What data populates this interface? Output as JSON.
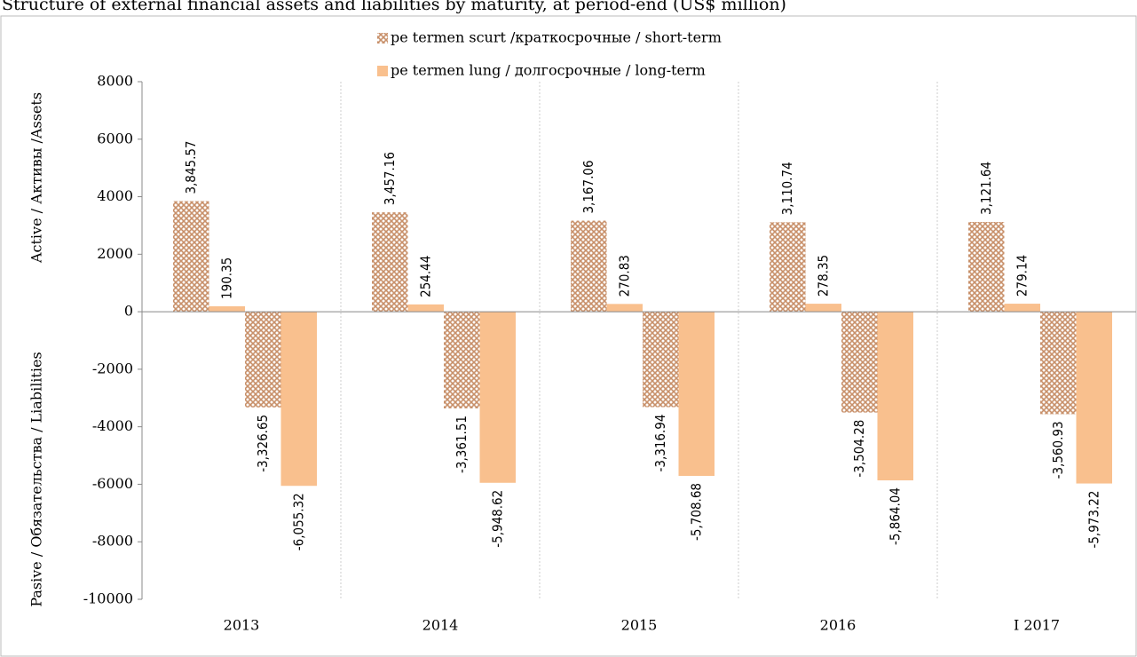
{
  "chart_data": {
    "type": "bar",
    "title": "Structure of external financial assets and liabilities by maturity, at period-end (US$ million)",
    "y_label_top": "Active / Активы /Assets",
    "y_label_bottom": "Pasive / Обязательства / Liabilities",
    "categories": [
      "2013",
      "2014",
      "2015",
      "2016",
      "I 2017"
    ],
    "series": [
      {
        "name": "pe termen scurt /краткосрочные / short-term",
        "color": "#c8906a",
        "pattern": "crosshatch",
        "values": [
          3845.57,
          3457.16,
          3167.06,
          3110.74,
          3121.64
        ],
        "value_labels": [
          "3,845.57",
          "3,457.16",
          "3,167.06",
          "3,110.74",
          "3,121.64"
        ],
        "liability_values": [
          -3326.65,
          -3361.51,
          -3316.94,
          -3504.28,
          -3560.93
        ],
        "liability_value_labels": [
          "-3,326.65",
          "-3,361.51",
          "-3,316.94",
          "-3,504.28",
          "-3,560.93"
        ]
      },
      {
        "name": "pe termen lung / долгосрочные / long-term",
        "color": "#f9c08e",
        "pattern": "solid",
        "values": [
          190.35,
          254.44,
          270.83,
          278.35,
          279.14
        ],
        "liability_values": [
          -6055.32,
          -5948.62,
          -5708.68,
          -5864.04,
          -5973.22
        ],
        "liability_value_labels": [
          "-6,055.32",
          "-5,948.62",
          "-5,708.68",
          "-5,864.04",
          "-5,973.22"
        ]
      }
    ],
    "ylim": [
      -10000,
      8000
    ],
    "yticks": [
      -10000,
      -8000,
      -6000,
      -4000,
      -2000,
      0,
      2000,
      4000,
      6000,
      8000
    ]
  }
}
